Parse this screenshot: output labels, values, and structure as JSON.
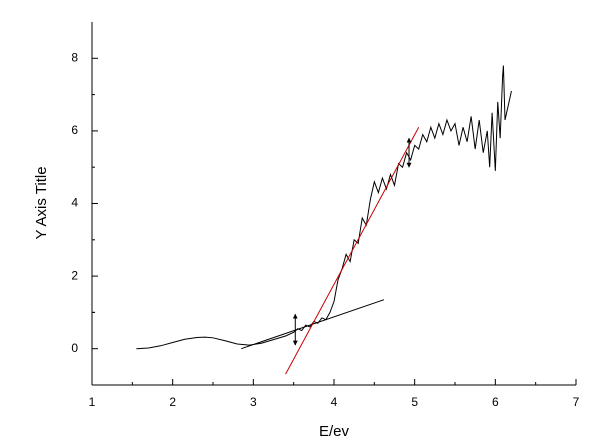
{
  "chart_data": {
    "type": "line",
    "x_label": "E/ev",
    "y_label": "Y Axis Title",
    "xlim": [
      1,
      7
    ],
    "xticks": [
      1,
      2,
      3,
      4,
      5,
      6,
      7
    ],
    "ylim": [
      -1,
      9
    ],
    "yticks": [
      0,
      2,
      4,
      6,
      8
    ],
    "series": [
      {
        "color": "#000000",
        "x": [
          1.55,
          1.7,
          1.85,
          2.0,
          2.15,
          2.3,
          2.4,
          2.5,
          2.65,
          2.8,
          2.95,
          3.1,
          3.25,
          3.4,
          3.5,
          3.55,
          3.6,
          3.65,
          3.7,
          3.75,
          3.8,
          3.85,
          3.9,
          3.95,
          4.0,
          4.05,
          4.1,
          4.15,
          4.2,
          4.25,
          4.3,
          4.35,
          4.4,
          4.45,
          4.5,
          4.55,
          4.6,
          4.65,
          4.7,
          4.75,
          4.8,
          4.85,
          4.9,
          4.95,
          5.0,
          5.05,
          5.1,
          5.15,
          5.2,
          5.25,
          5.3,
          5.35,
          5.4,
          5.45,
          5.5,
          5.55,
          5.6,
          5.65,
          5.7,
          5.75,
          5.8,
          5.85,
          5.9,
          5.93,
          5.96,
          6.0,
          6.03,
          6.06,
          6.09,
          6.1,
          6.12,
          6.15,
          6.2
        ],
        "values": [
          0,
          0.02,
          0.08,
          0.17,
          0.26,
          0.31,
          0.32,
          0.3,
          0.22,
          0.13,
          0.1,
          0.15,
          0.25,
          0.35,
          0.45,
          0.55,
          0.5,
          0.65,
          0.6,
          0.75,
          0.7,
          0.85,
          0.8,
          1.0,
          1.3,
          1.9,
          2.2,
          2.6,
          2.4,
          3.0,
          2.9,
          3.6,
          3.4,
          4.1,
          4.6,
          4.3,
          4.7,
          4.4,
          4.8,
          4.5,
          5.1,
          5.0,
          5.4,
          5.2,
          5.6,
          5.5,
          5.9,
          5.7,
          6.1,
          5.8,
          6.2,
          5.9,
          6.3,
          6.0,
          6.2,
          5.6,
          6.1,
          5.7,
          6.4,
          5.5,
          6.3,
          5.4,
          6.0,
          5.0,
          6.5,
          4.9,
          6.8,
          5.8,
          7.5,
          7.8,
          6.3,
          6.6,
          7.1
        ]
      },
      {
        "color": "#000000",
        "x": [
          2.85,
          4.62
        ],
        "values": [
          0.0,
          1.35
        ]
      },
      {
        "color": "#cc0000",
        "x": [
          3.4,
          5.05
        ],
        "values": [
          -0.7,
          6.1
        ]
      }
    ],
    "arrows": [
      {
        "x": 3.52,
        "y": [
          0.1,
          0.95
        ]
      },
      {
        "x": 4.93,
        "y": [
          5.0,
          5.8
        ]
      }
    ]
  }
}
